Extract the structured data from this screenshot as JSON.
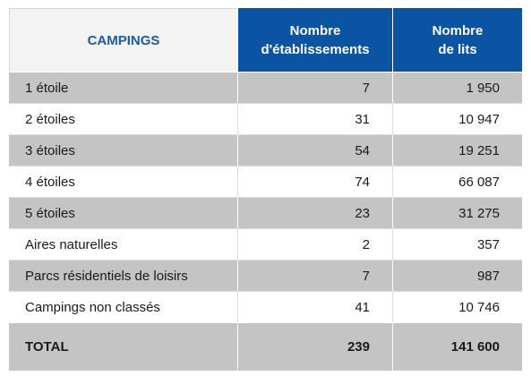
{
  "table": {
    "headers": {
      "label": "CAMPINGS",
      "col_etablissements": [
        "Nombre",
        "d'établissements"
      ],
      "col_lits": [
        "Nombre",
        "de lits"
      ]
    },
    "rows": [
      {
        "label": "1 étoile",
        "etablissements": "7",
        "lits": "1 950"
      },
      {
        "label": "2 étoiles",
        "etablissements": "31",
        "lits": "10 947"
      },
      {
        "label": "3 étoiles",
        "etablissements": "54",
        "lits": "19 251"
      },
      {
        "label": "4 étoiles",
        "etablissements": "74",
        "lits": "66 087"
      },
      {
        "label": "5 étoiles",
        "etablissements": "23",
        "lits": "31 275"
      },
      {
        "label": "Aires naturelles",
        "etablissements": "2",
        "lits": "357"
      },
      {
        "label": "Parcs résidentiels de loisirs",
        "etablissements": "7",
        "lits": "987"
      },
      {
        "label": "Campings non classés",
        "etablissements": "41",
        "lits": "10 746"
      }
    ],
    "total": {
      "label": "TOTAL",
      "etablissements": "239",
      "lits": "141 600"
    },
    "colors": {
      "header_accent": "#0b54a3",
      "header_label_text": "#1a5aa6",
      "row_shade": "#c4c4c4",
      "row_plain": "#ffffff"
    }
  }
}
